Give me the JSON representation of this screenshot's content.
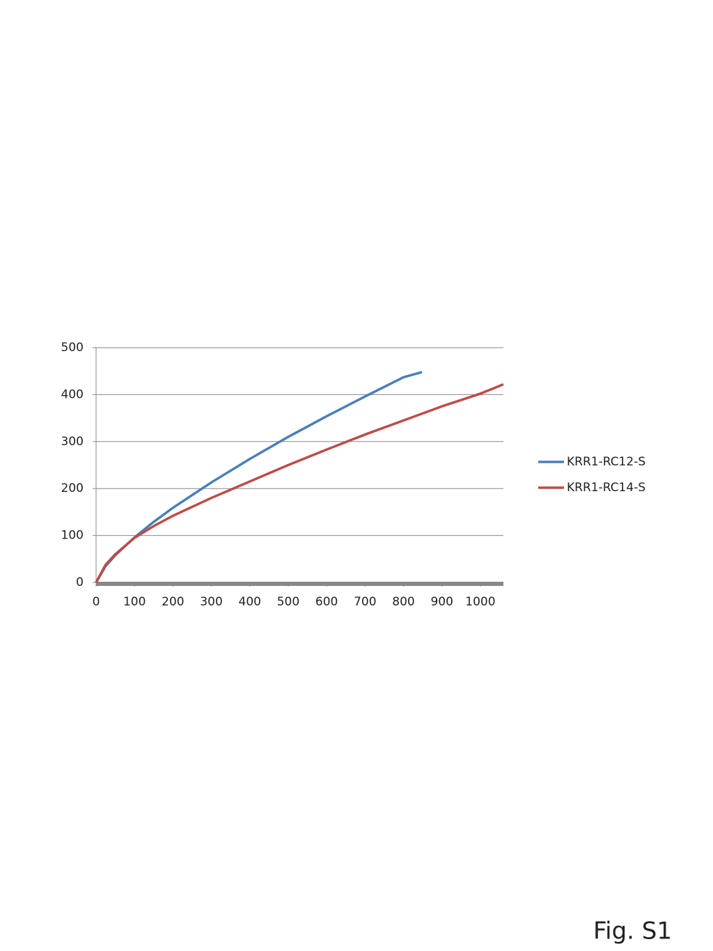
{
  "chart_data": {
    "type": "line",
    "xlim": [
      0,
      1060
    ],
    "xticks": [
      0,
      100,
      200,
      300,
      400,
      500,
      600,
      700,
      800,
      900,
      1000
    ],
    "ylim": [
      0,
      500
    ],
    "yticks": [
      0,
      100,
      200,
      300,
      400,
      500
    ],
    "grid": true,
    "legend": "right",
    "series": [
      {
        "name": "KRR1-RC12-S",
        "color": "#4a7ebb",
        "x": [
          0,
          25,
          50,
          100,
          150,
          200,
          300,
          400,
          500,
          600,
          700,
          800,
          848
        ],
        "values": [
          0,
          35,
          58,
          96,
          129,
          159,
          213,
          263,
          310,
          354,
          396,
          437,
          448
        ]
      },
      {
        "name": "KRR1-RC14-S",
        "color": "#be4b48",
        "x": [
          0,
          25,
          50,
          100,
          150,
          200,
          300,
          400,
          500,
          600,
          700,
          800,
          900,
          1000,
          1060
        ],
        "values": [
          0,
          38,
          60,
          95,
          120,
          142,
          180,
          215,
          250,
          283,
          315,
          345,
          375,
          402,
          422
        ]
      }
    ]
  },
  "caption": "Fig. S1"
}
